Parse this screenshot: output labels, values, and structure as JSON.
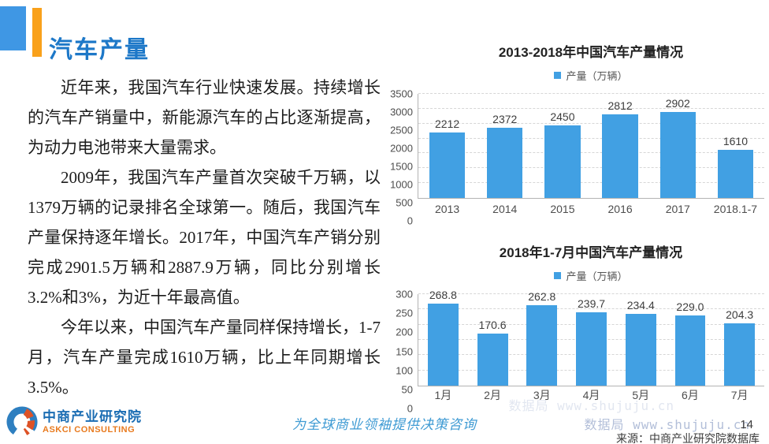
{
  "header": {
    "title": "汽车产量"
  },
  "article": {
    "paragraphs": [
      "近年来，我国汽车行业快速发展。持续增长的汽车产销量中，新能源汽车的占比逐渐提高，为动力电池带来大量需求。",
      "2009年，我国汽车产量首次突破千万辆，以1379万辆的记录排名全球第一。随后，我国汽车产量保持逐年增长。2017年，中国汽车产销分别完成2901.5万辆和2887.9万辆，同比分别增长3.2%和3%，为近十年最高值。",
      "今年以来，中国汽车产量同样保持增长，1-7月，汽车产量完成1610万辆，比上年同期增长3.5%。"
    ]
  },
  "chart_data": [
    {
      "type": "bar",
      "title": "2013-2018年中国汽车产量情况",
      "legend": "产量（万辆）",
      "categories": [
        "2013",
        "2014",
        "2015",
        "2016",
        "2017",
        "2018.1-7"
      ],
      "values": [
        2212,
        2372,
        2450,
        2812,
        2902,
        1610
      ],
      "value_labels": [
        "2212",
        "2372",
        "2450",
        "2812",
        "2902",
        "1610"
      ],
      "xlabel": "",
      "ylabel": "产量（万辆）",
      "ylim": [
        0,
        3500
      ],
      "y_ticks": [
        3500,
        3000,
        2500,
        2000,
        1500,
        1000,
        500,
        0
      ],
      "grid": true,
      "legend_position": "top",
      "bar_color": "#41a0e3"
    },
    {
      "type": "bar",
      "title": "2018年1-7月中国汽车产量情况",
      "legend": "产量（万辆）",
      "categories": [
        "1月",
        "2月",
        "3月",
        "4月",
        "5月",
        "6月",
        "7月"
      ],
      "values": [
        268.8,
        170.6,
        262.8,
        239.7,
        234.4,
        229.0,
        204.3
      ],
      "value_labels": [
        "268.8",
        "170.6",
        "262.8",
        "239.7",
        "234.4",
        "229.0",
        "204.3"
      ],
      "xlabel": "",
      "ylabel": "产量（万辆）",
      "ylim": [
        0,
        300
      ],
      "y_ticks": [
        300,
        250,
        200,
        150,
        100,
        50,
        0
      ],
      "grid": true,
      "legend_position": "top",
      "bar_color": "#41a0e3"
    }
  ],
  "source_note": "来源：中商产业研究院数据库",
  "footer": {
    "logo_cn": "中商产业研究院",
    "logo_en": "ASKCI CONSULTING",
    "slogan": "为全球商业领袖提供决策咨询",
    "watermark": "数据局 www.shujuju.cn",
    "page_number": "14"
  },
  "colors": {
    "title_blue": "#1d78c8",
    "header_square_blue": "#3f97e4",
    "header_bar_orange": "#f9a11b",
    "bar_blue": "#41a0e3",
    "logo_blue": "#1b6db3",
    "logo_orange": "#e87a1e",
    "slogan_blue": "#3e9ad3",
    "watermark_blue": "#b3bfd9"
  }
}
